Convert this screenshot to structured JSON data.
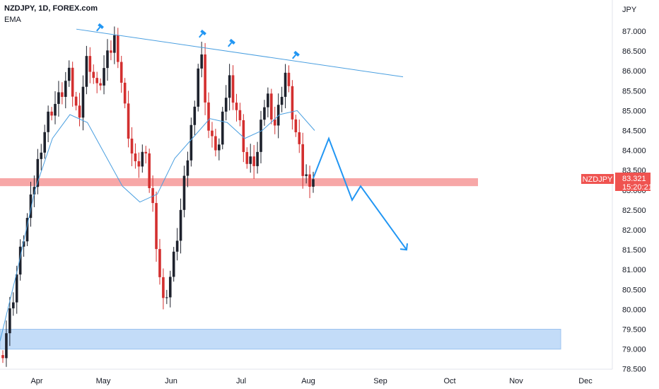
{
  "header": {
    "symbol_line": "NZDJPY, 1D, FOREX.com",
    "indicator": "EMA",
    "currency": "JPY"
  },
  "price_tag": {
    "symbol": "NZDJPY",
    "price": "83.321",
    "countdown": "15:20:21"
  },
  "colors": {
    "up": "#1e222d",
    "down": "#d32f2f",
    "ema": "#4a9fe0",
    "trendline": "#4a9fe0",
    "arrow": "#2196f3",
    "resistance_zone": "#f7a7a7",
    "support_zone": "#c3dcf8",
    "tag": "#ef5350"
  },
  "chart_data": {
    "type": "candlestick",
    "title": "",
    "xlabel": "",
    "ylabel": "",
    "x_ticks": [
      "Apr",
      "May",
      "Jun",
      "Jul",
      "Aug",
      "Sep",
      "Oct",
      "Nov",
      "Dec"
    ],
    "y_ticks": [
      "78.500",
      "79.000",
      "79.500",
      "80.000",
      "80.500",
      "81.000",
      "81.500",
      "82.000",
      "82.500",
      "83.000",
      "83.500",
      "84.000",
      "84.500",
      "85.000",
      "85.500",
      "86.000",
      "86.500",
      "87.000"
    ],
    "ylim": [
      78.5,
      87.5
    ],
    "last_price": 83.321,
    "close_path": [
      79.0,
      80.2,
      81.6,
      82.7,
      84.1,
      85.0,
      85.3,
      85.9,
      84.8,
      86.4,
      85.5,
      86.2,
      86.9,
      85.0,
      83.5,
      84.0,
      82.5,
      80.1,
      81.0,
      82.6,
      84.5,
      86.6,
      84.2,
      84.1,
      85.9,
      84.9,
      83.6,
      83.8,
      85.5,
      84.6,
      86.0,
      84.6,
      83.3,
      83.32
    ],
    "ema_path": [
      79.2,
      81.0,
      83.0,
      84.3,
      84.9,
      84.7,
      83.9,
      83.1,
      82.7,
      82.9,
      83.8,
      84.3,
      84.8,
      84.7,
      84.3,
      84.5,
      84.9,
      85.0,
      84.5
    ],
    "resistance_zone": [
      83.1,
      83.3
    ],
    "support_zone": [
      79.0,
      79.5
    ],
    "trendline": [
      87.05,
      85.85
    ],
    "projection": [
      83.3,
      84.3,
      82.75,
      83.1,
      81.5
    ],
    "annotations": [
      "pin",
      "pin",
      "pin",
      "pin"
    ]
  }
}
